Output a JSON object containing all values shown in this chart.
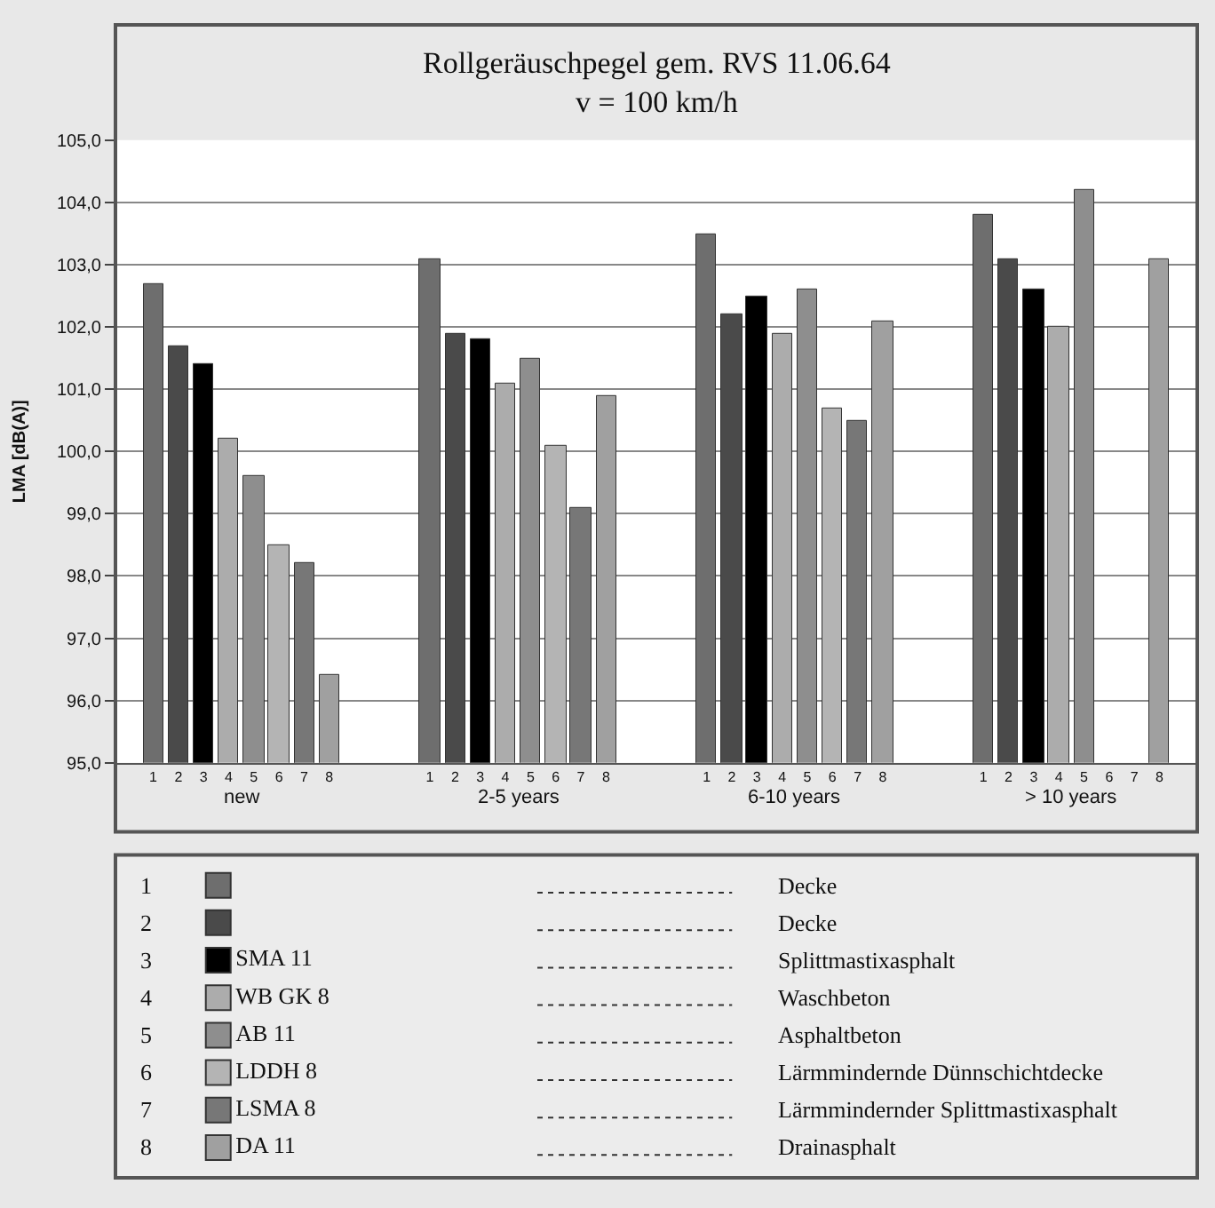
{
  "chart_data": {
    "type": "bar",
    "title": "Rollgeräuschpegel gem. RVS 11.06.64",
    "subtitle": "v = 100 km/h",
    "ylabel": "LMA [dB(A)]",
    "categories": [
      "new",
      "2-5 years",
      "6-10 years",
      "> 10 years"
    ],
    "series": [
      {
        "name": null,
        "color": "#6e6e6e",
        "values": [
          102.7,
          103.1,
          103.5,
          103.8
        ]
      },
      {
        "name": null,
        "color": "#4a4a4a",
        "values": [
          101.7,
          101.9,
          102.2,
          103.1
        ]
      },
      {
        "name": "SMA 11",
        "color": "#000000",
        "values": [
          101.4,
          101.8,
          102.5,
          102.6
        ]
      },
      {
        "name": "WB GK 8",
        "color": "#acacac",
        "values": [
          100.2,
          101.1,
          101.9,
          102.0
        ]
      },
      {
        "name": "AB 11",
        "color": "#8e8e8e",
        "values": [
          99.6,
          101.5,
          102.6,
          104.2
        ]
      },
      {
        "name": "LDDH 8",
        "color": "#b4b4b4",
        "values": [
          98.5,
          100.1,
          100.7,
          null
        ]
      },
      {
        "name": "LSMA 8",
        "color": "#777777",
        "values": [
          98.2,
          99.1,
          100.5,
          null
        ]
      },
      {
        "name": "DA 11",
        "color": "#a0a0a0",
        "values": [
          96.4,
          100.9,
          102.1,
          103.1
        ]
      }
    ],
    "ylim": [
      95,
      105
    ],
    "yticks": [
      {
        "value": 95,
        "label": "95,0"
      },
      {
        "value": 96,
        "label": "96,0"
      },
      {
        "value": 97,
        "label": "97,0"
      },
      {
        "value": 98,
        "label": "98,0"
      },
      {
        "value": 99,
        "label": "99,0"
      },
      {
        "value": 100,
        "label": "100,0"
      },
      {
        "value": 101,
        "label": "101,0"
      },
      {
        "value": 102,
        "label": "102,0"
      },
      {
        "value": 103,
        "label": "103,0"
      },
      {
        "value": 104,
        "label": "104,0"
      },
      {
        "value": 105,
        "label": "105,0"
      }
    ],
    "grid": "y",
    "legend": "bottom",
    "annotations": [
      "1",
      "2",
      "3",
      "4",
      "5",
      "6",
      "7",
      "8",
      "Decke",
      "Decke",
      "Splittmastixasphalt",
      "Waschbeton",
      "Asphaltbeton",
      "Lärmmindernde Dünnschichtdecke",
      "Lärmmindernder Splittmastixasphalt",
      "Drainasphalt"
    ]
  }
}
